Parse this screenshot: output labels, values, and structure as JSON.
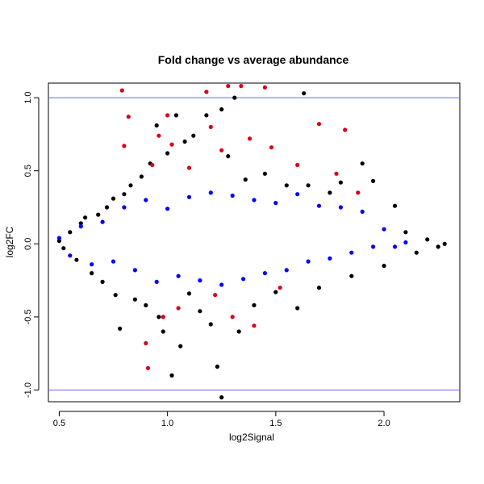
{
  "chart_data": {
    "type": "scatter",
    "title": "Fold change vs average abundance",
    "xlabel": "log2Signal",
    "ylabel": "log2FC",
    "xlim": [
      0.45,
      2.35
    ],
    "ylim": [
      -1.08,
      1.1
    ],
    "xticks": [
      0.5,
      1.0,
      1.5,
      2.0
    ],
    "xtick_labels": [
      "0.5",
      "1.0",
      "1.5",
      "2.0"
    ],
    "yticks": [
      -1.0,
      -0.5,
      0.0,
      0.5,
      1.0
    ],
    "ytick_labels": [
      "-1.0",
      "-0.5",
      "0.0",
      "0.5",
      "1.0"
    ],
    "reference_lines": [
      {
        "axis": "y",
        "value": 1.0,
        "color": "#6666ff"
      },
      {
        "axis": "y",
        "value": -1.0,
        "color": "#6666ff"
      }
    ],
    "grid": false,
    "legend": "none",
    "series": [
      {
        "color": "#000000",
        "points": [
          [
            0.5,
            0.02
          ],
          [
            0.52,
            -0.03
          ],
          [
            0.55,
            0.08
          ],
          [
            0.58,
            -0.11
          ],
          [
            0.6,
            0.14
          ],
          [
            0.62,
            0.18
          ],
          [
            0.65,
            -0.2
          ],
          [
            0.68,
            0.2
          ],
          [
            0.7,
            -0.26
          ],
          [
            0.72,
            0.25
          ],
          [
            0.75,
            0.31
          ],
          [
            0.76,
            -0.35
          ],
          [
            0.78,
            -0.58
          ],
          [
            0.8,
            0.34
          ],
          [
            0.83,
            0.4
          ],
          [
            0.85,
            -0.38
          ],
          [
            0.88,
            0.46
          ],
          [
            0.9,
            -0.42
          ],
          [
            0.92,
            0.55
          ],
          [
            0.95,
            0.81
          ],
          [
            0.96,
            -0.5
          ],
          [
            0.98,
            -0.6
          ],
          [
            1.0,
            0.62
          ],
          [
            1.02,
            -0.9
          ],
          [
            1.04,
            0.88
          ],
          [
            1.06,
            -0.7
          ],
          [
            1.08,
            0.7
          ],
          [
            1.1,
            -0.34
          ],
          [
            1.12,
            0.74
          ],
          [
            1.15,
            -0.46
          ],
          [
            1.18,
            0.88
          ],
          [
            1.2,
            -0.55
          ],
          [
            1.23,
            -0.84
          ],
          [
            1.25,
            0.92
          ],
          [
            1.25,
            -1.05
          ],
          [
            1.28,
            0.6
          ],
          [
            1.31,
            1.0
          ],
          [
            1.33,
            -0.6
          ],
          [
            1.36,
            0.44
          ],
          [
            1.4,
            -0.42
          ],
          [
            1.45,
            0.48
          ],
          [
            1.5,
            -0.33
          ],
          [
            1.55,
            0.4
          ],
          [
            1.6,
            -0.44
          ],
          [
            1.63,
            1.03
          ],
          [
            1.65,
            0.4
          ],
          [
            1.7,
            -0.3
          ],
          [
            1.75,
            0.35
          ],
          [
            1.8,
            0.42
          ],
          [
            1.85,
            -0.22
          ],
          [
            1.9,
            0.55
          ],
          [
            1.95,
            0.43
          ],
          [
            2.0,
            -0.15
          ],
          [
            2.05,
            0.26
          ],
          [
            2.1,
            0.08
          ],
          [
            2.15,
            -0.06
          ],
          [
            2.2,
            0.03
          ],
          [
            2.25,
            -0.02
          ],
          [
            2.28,
            0.0
          ]
        ]
      },
      {
        "color": "#0000ff",
        "points": [
          [
            0.5,
            0.04
          ],
          [
            0.55,
            -0.08
          ],
          [
            0.6,
            0.12
          ],
          [
            0.65,
            -0.14
          ],
          [
            0.7,
            0.15
          ],
          [
            0.75,
            -0.12
          ],
          [
            0.8,
            0.25
          ],
          [
            0.85,
            -0.18
          ],
          [
            0.9,
            0.3
          ],
          [
            0.95,
            -0.26
          ],
          [
            1.0,
            0.24
          ],
          [
            1.05,
            -0.22
          ],
          [
            1.1,
            0.32
          ],
          [
            1.15,
            -0.25
          ],
          [
            1.2,
            0.35
          ],
          [
            1.25,
            -0.28
          ],
          [
            1.3,
            0.33
          ],
          [
            1.35,
            -0.24
          ],
          [
            1.4,
            0.3
          ],
          [
            1.45,
            -0.2
          ],
          [
            1.5,
            0.28
          ],
          [
            1.55,
            -0.18
          ],
          [
            1.6,
            0.34
          ],
          [
            1.65,
            -0.12
          ],
          [
            1.7,
            0.26
          ],
          [
            1.75,
            -0.1
          ],
          [
            1.8,
            0.25
          ],
          [
            1.85,
            -0.06
          ],
          [
            1.9,
            0.22
          ],
          [
            1.95,
            -0.02
          ],
          [
            2.0,
            0.1
          ],
          [
            2.05,
            -0.02
          ],
          [
            2.1,
            0.01
          ]
        ]
      },
      {
        "color": "#d9001b",
        "points": [
          [
            0.79,
            1.05
          ],
          [
            0.8,
            0.67
          ],
          [
            0.82,
            0.87
          ],
          [
            0.9,
            -0.68
          ],
          [
            0.91,
            -0.85
          ],
          [
            0.93,
            0.54
          ],
          [
            0.96,
            0.74
          ],
          [
            0.98,
            -0.5
          ],
          [
            1.0,
            0.88
          ],
          [
            1.02,
            0.68
          ],
          [
            1.05,
            -0.44
          ],
          [
            1.1,
            0.52
          ],
          [
            1.18,
            1.04
          ],
          [
            1.2,
            0.8
          ],
          [
            1.22,
            -0.35
          ],
          [
            1.25,
            0.64
          ],
          [
            1.28,
            1.08
          ],
          [
            1.3,
            -0.5
          ],
          [
            1.34,
            1.08
          ],
          [
            1.38,
            0.72
          ],
          [
            1.4,
            -0.56
          ],
          [
            1.45,
            1.07
          ],
          [
            1.48,
            0.66
          ],
          [
            1.52,
            -0.3
          ],
          [
            1.6,
            0.54
          ],
          [
            1.7,
            0.82
          ],
          [
            1.78,
            0.48
          ],
          [
            1.82,
            0.78
          ],
          [
            1.88,
            0.35
          ]
        ]
      }
    ]
  }
}
